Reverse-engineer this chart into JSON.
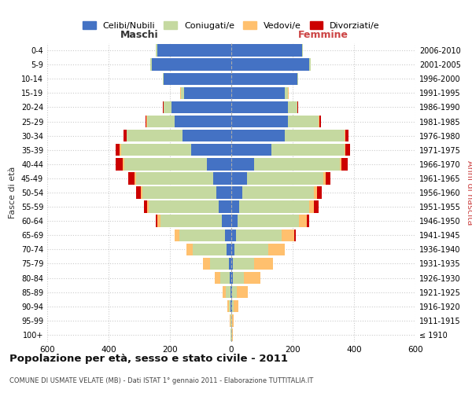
{
  "age_groups": [
    "100+",
    "95-99",
    "90-94",
    "85-89",
    "80-84",
    "75-79",
    "70-74",
    "65-69",
    "60-64",
    "55-59",
    "50-54",
    "45-49",
    "40-44",
    "35-39",
    "30-34",
    "25-29",
    "20-24",
    "15-19",
    "10-14",
    "5-9",
    "0-4"
  ],
  "birth_years": [
    "≤ 1910",
    "1911-1915",
    "1916-1920",
    "1921-1925",
    "1926-1930",
    "1931-1935",
    "1936-1940",
    "1941-1945",
    "1946-1950",
    "1951-1955",
    "1956-1960",
    "1961-1965",
    "1966-1970",
    "1971-1975",
    "1976-1980",
    "1981-1985",
    "1986-1990",
    "1991-1995",
    "1996-2000",
    "2001-2005",
    "2006-2010"
  ],
  "maschi_celibi": [
    1,
    1,
    2,
    3,
    5,
    8,
    15,
    20,
    30,
    40,
    50,
    60,
    80,
    130,
    160,
    185,
    195,
    155,
    220,
    260,
    240
  ],
  "maschi_coniugati": [
    1,
    2,
    5,
    15,
    30,
    60,
    110,
    150,
    200,
    230,
    240,
    250,
    270,
    230,
    180,
    90,
    25,
    10,
    2,
    5,
    5
  ],
  "maschi_vedovi": [
    1,
    2,
    5,
    10,
    20,
    25,
    20,
    15,
    10,
    5,
    5,
    5,
    3,
    3,
    2,
    2,
    1,
    1,
    0,
    0,
    0
  ],
  "maschi_divorziati": [
    0,
    0,
    0,
    0,
    0,
    0,
    0,
    0,
    5,
    10,
    15,
    20,
    25,
    15,
    10,
    3,
    1,
    0,
    0,
    0,
    0
  ],
  "femmine_celibi": [
    1,
    1,
    2,
    3,
    5,
    5,
    10,
    15,
    20,
    25,
    35,
    50,
    75,
    130,
    175,
    185,
    185,
    175,
    215,
    255,
    230
  ],
  "femmine_coniugati": [
    1,
    2,
    5,
    15,
    35,
    70,
    110,
    150,
    200,
    230,
    235,
    250,
    280,
    240,
    195,
    100,
    30,
    10,
    2,
    3,
    3
  ],
  "femmine_vedovi": [
    2,
    4,
    15,
    35,
    55,
    60,
    55,
    40,
    25,
    15,
    10,
    8,
    5,
    3,
    2,
    2,
    1,
    1,
    0,
    0,
    0
  ],
  "femmine_divorziati": [
    0,
    0,
    0,
    0,
    0,
    0,
    0,
    5,
    10,
    15,
    15,
    15,
    20,
    15,
    10,
    5,
    1,
    0,
    0,
    0,
    0
  ],
  "colors": {
    "celibi": "#4472C4",
    "coniugati": "#c5d9a0",
    "vedovi": "#ffc06e",
    "divorziati": "#cc0000"
  },
  "xlim": 600,
  "title": "Popolazione per età, sesso e stato civile - 2011",
  "subtitle": "COMUNE DI USMATE VELATE (MB) - Dati ISTAT 1° gennaio 2011 - Elaborazione TUTTITALIA.IT",
  "ylabel_left": "Fasce di età",
  "ylabel_right": "Anni di nascita",
  "xlabel_left": "Maschi",
  "xlabel_right": "Femmine",
  "legend_labels": [
    "Celibi/Nubili",
    "Coniugati/e",
    "Vedovi/e",
    "Divorziati/e"
  ],
  "background_color": "#ffffff",
  "grid_color": "#cccccc"
}
